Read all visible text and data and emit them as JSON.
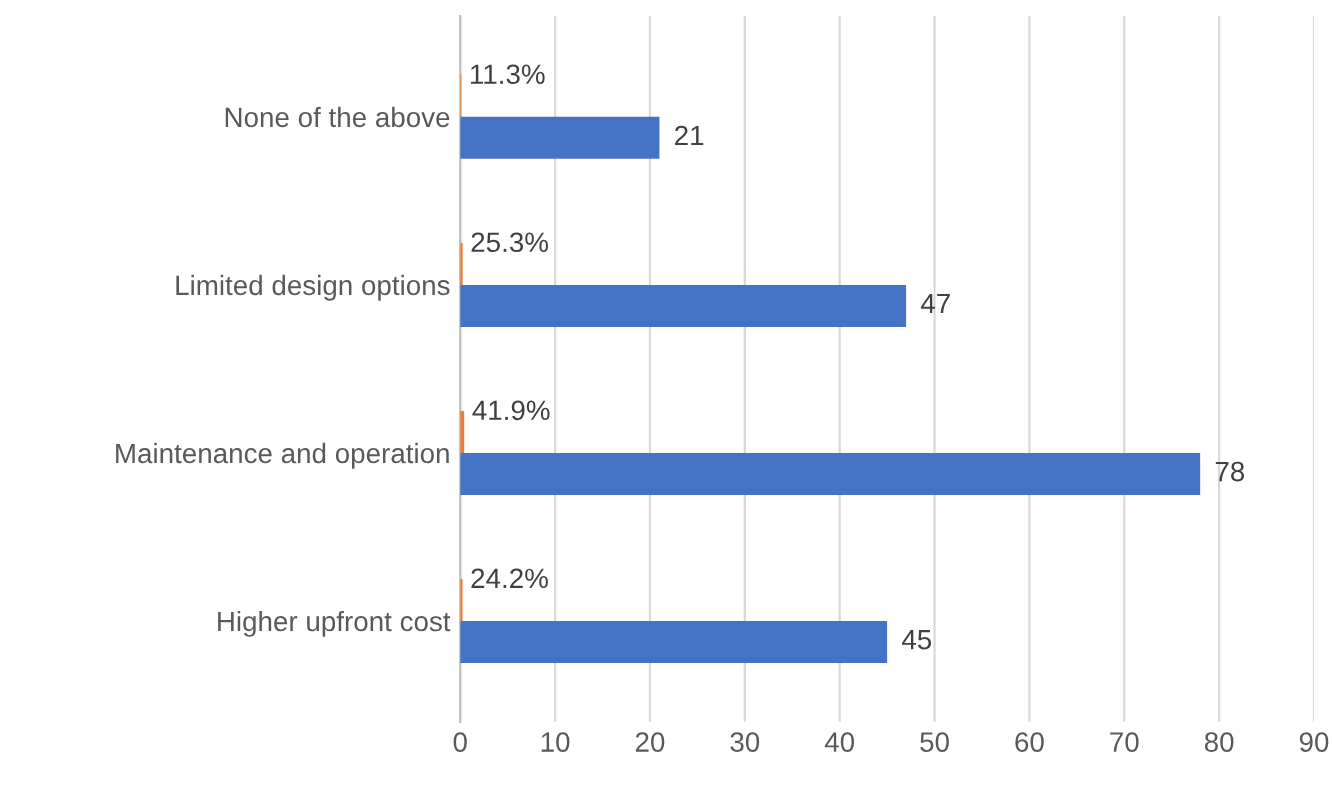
{
  "chart_data": {
    "type": "bar",
    "orientation": "horizontal",
    "categories": [
      "None of the above",
      "Limited design options",
      "Maintenance and operation",
      "Higher upfront cost"
    ],
    "series": [
      {
        "color": "#ed7d31",
        "values": [
          0.113,
          0.253,
          0.419,
          0.242
        ],
        "value_labels": [
          "11.3%",
          "25.3%",
          "41.9%",
          "24.2%"
        ]
      },
      {
        "color": "#4472c4",
        "values": [
          21,
          47,
          78,
          45
        ],
        "value_labels": [
          "21",
          "47",
          "78",
          "45"
        ]
      }
    ],
    "xlim": [
      0,
      90
    ],
    "xticks": [
      0,
      10,
      20,
      30,
      40,
      50,
      60,
      70,
      80,
      90
    ],
    "grid": "x",
    "legend": false
  }
}
